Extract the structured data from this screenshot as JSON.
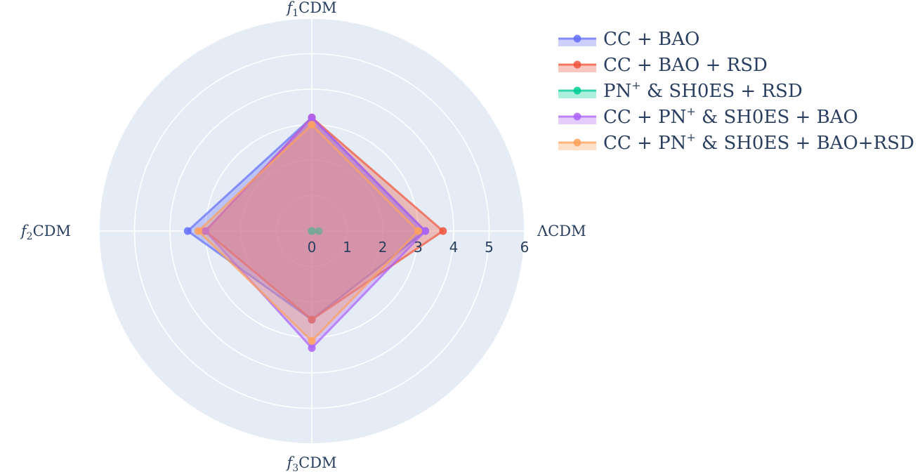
{
  "chart_data": {
    "type": "radar",
    "axes": [
      "ΛCDM",
      "f1CDM",
      "f2CDM",
      "f3CDM"
    ],
    "axis_labels": [
      {
        "main": "ΛCDM",
        "italic": "",
        "sub": ""
      },
      {
        "main": "CDM",
        "italic": "f",
        "sub": "1"
      },
      {
        "main": "CDM",
        "italic": "f",
        "sub": "2"
      },
      {
        "main": "CDM",
        "italic": "f",
        "sub": "3"
      }
    ],
    "radial_ticks": [
      "0",
      "1",
      "2",
      "3",
      "4",
      "5",
      "6"
    ],
    "radial_range": [
      0,
      6
    ],
    "series": [
      {
        "name": "CC + BAO",
        "values": [
          3.2,
          3.2,
          3.5,
          2.5
        ],
        "color": "#636efa"
      },
      {
        "name": "CC + BAO + RSD",
        "values": [
          3.7,
          3.2,
          3.0,
          2.5
        ],
        "color": "#ef553b"
      },
      {
        "name": "PN+ & SH0ES + RSD",
        "values": [
          0.2,
          0.0,
          0.0,
          0.0
        ],
        "color": "#00cc96"
      },
      {
        "name": "CC + PN+ & SH0ES + BAO",
        "values": [
          3.2,
          3.2,
          3.0,
          3.3
        ],
        "color": "#ab63fa"
      },
      {
        "name": "CC + PN+ & SH0ES + BAO+RSD",
        "values": [
          3.0,
          3.0,
          3.2,
          3.1
        ],
        "color": "#ffa15a"
      }
    ],
    "legend": {
      "position": "top-right",
      "entries": [
        {
          "prefix": "CC + BAO",
          "sup": "",
          "suffix": ""
        },
        {
          "prefix": "CC + BAO + RSD",
          "sup": "",
          "suffix": ""
        },
        {
          "prefix": "PN",
          "sup": "+",
          "suffix": " & SH0ES + RSD"
        },
        {
          "prefix": "CC + PN",
          "sup": "+",
          "suffix": " & SH0ES + BAO"
        },
        {
          "prefix": "CC + PN",
          "sup": "+",
          "suffix": " & SH0ES + BAO+RSD"
        }
      ]
    },
    "background_color": "#e5ecf6",
    "grid": true
  }
}
